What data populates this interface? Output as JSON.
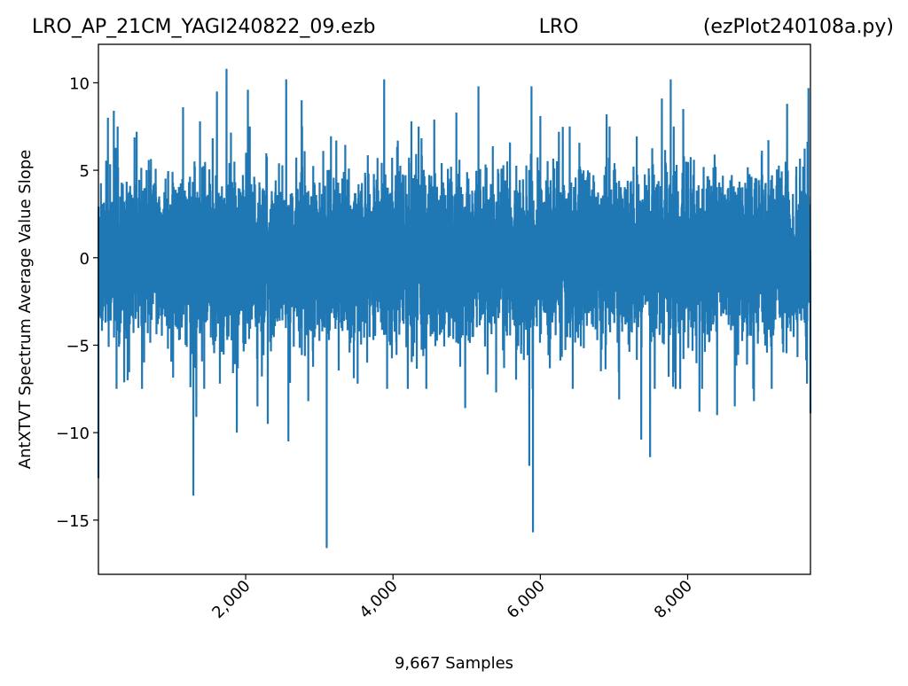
{
  "title": {
    "left": "LRO_AP_21CM_YAGI240822_09.ezb",
    "center": "LRO",
    "right": "(ezPlot240108a.py)"
  },
  "chart_data": {
    "type": "line",
    "xlabel": "9,667 Samples",
    "ylabel": "AntXTVT Spectrum Average Value Slope",
    "xlim": [
      1,
      9667
    ],
    "ylim": [
      -18.1,
      12.2
    ],
    "x_ticks": [
      2000,
      4000,
      6000,
      8000
    ],
    "x_tick_labels": [
      "2,000",
      "4,000",
      "6,000",
      "8,000"
    ],
    "y_ticks": [
      10,
      5,
      0,
      -5,
      -10,
      -15
    ],
    "y_tick_labels": [
      "10",
      "5",
      "0",
      "−5",
      "−10",
      "−15"
    ],
    "grid": false,
    "legend": "none",
    "series": [
      {
        "color": "#1f77b4",
        "n_samples": 9667,
        "typical_range": [
          -5,
          5
        ],
        "peaks": [
          {
            "x": 1,
            "y": -12.6
          },
          {
            "x": 130,
            "y": 8.0
          },
          {
            "x": 210,
            "y": 8.4
          },
          {
            "x": 520,
            "y": 7.2
          },
          {
            "x": 1150,
            "y": 8.6
          },
          {
            "x": 1250,
            "y": -7.4
          },
          {
            "x": 1290,
            "y": -13.6
          },
          {
            "x": 1330,
            "y": -9.1
          },
          {
            "x": 1380,
            "y": 7.8
          },
          {
            "x": 1610,
            "y": 9.5
          },
          {
            "x": 1650,
            "y": -7.2
          },
          {
            "x": 1740,
            "y": 10.8
          },
          {
            "x": 1880,
            "y": -10.0
          },
          {
            "x": 2030,
            "y": 9.6
          },
          {
            "x": 2160,
            "y": -8.5
          },
          {
            "x": 2300,
            "y": -9.5
          },
          {
            "x": 2550,
            "y": 10.2
          },
          {
            "x": 2580,
            "y": -10.5
          },
          {
            "x": 2760,
            "y": 9.0
          },
          {
            "x": 2850,
            "y": -8.2
          },
          {
            "x": 3100,
            "y": -16.6
          },
          {
            "x": 3230,
            "y": 6.7
          },
          {
            "x": 3520,
            "y": -7.2
          },
          {
            "x": 3880,
            "y": 10.2
          },
          {
            "x": 3920,
            "y": -7.5
          },
          {
            "x": 4250,
            "y": 7.8
          },
          {
            "x": 4560,
            "y": 7.9
          },
          {
            "x": 4860,
            "y": 8.3
          },
          {
            "x": 4980,
            "y": -8.6
          },
          {
            "x": 5160,
            "y": 9.8
          },
          {
            "x": 5400,
            "y": -7.7
          },
          {
            "x": 5850,
            "y": -11.9
          },
          {
            "x": 5880,
            "y": 9.8
          },
          {
            "x": 5900,
            "y": -15.7
          },
          {
            "x": 6000,
            "y": 8.1
          },
          {
            "x": 6440,
            "y": -7.5
          },
          {
            "x": 6900,
            "y": 8.2
          },
          {
            "x": 7070,
            "y": -8.1
          },
          {
            "x": 7370,
            "y": -10.4
          },
          {
            "x": 7490,
            "y": -11.4
          },
          {
            "x": 7650,
            "y": 9.1
          },
          {
            "x": 7770,
            "y": 10.2
          },
          {
            "x": 7940,
            "y": 8.5
          },
          {
            "x": 8160,
            "y": -8.8
          },
          {
            "x": 8400,
            "y": -9.0
          },
          {
            "x": 8640,
            "y": -8.5
          },
          {
            "x": 8900,
            "y": -8.2
          },
          {
            "x": 9350,
            "y": 8.8
          },
          {
            "x": 9620,
            "y": -7.2
          },
          {
            "x": 9640,
            "y": 9.7
          },
          {
            "x": 9667,
            "y": -8.9
          }
        ]
      }
    ]
  }
}
